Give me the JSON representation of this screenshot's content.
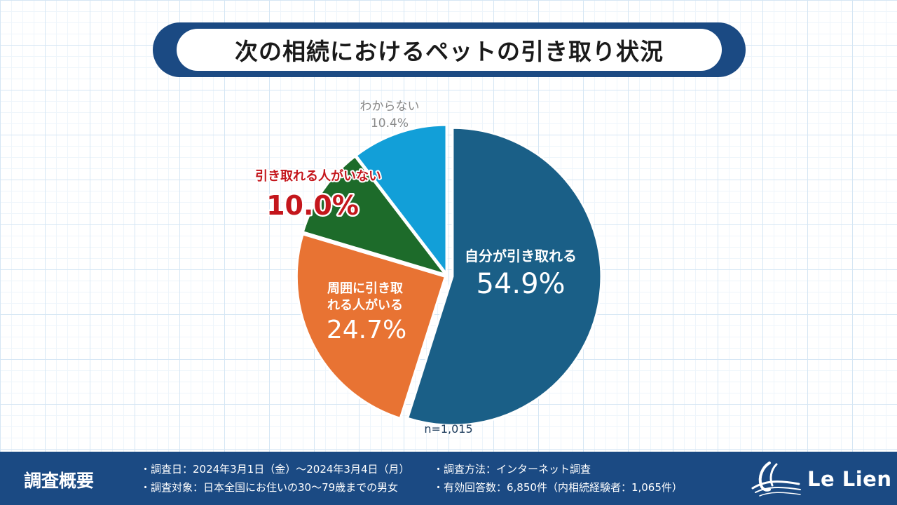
{
  "title": "次の相続におけるペットの引き取り状況",
  "chart_data": {
    "type": "pie",
    "title": "次の相続におけるペットの引き取り状況",
    "slices": [
      {
        "label": "自分が引き取れる",
        "value": 54.9,
        "display": "54.9%",
        "color": "#1a5f87"
      },
      {
        "label": "周囲に引き取れる人がいる",
        "value": 24.7,
        "display": "24.7%",
        "color": "#e87333"
      },
      {
        "label": "引き取れる人がいない",
        "value": 10.0,
        "display": "10.0%",
        "color": "#1d6b2a"
      },
      {
        "label": "わからない",
        "value": 10.4,
        "display": "10.4%",
        "color": "#129fd8"
      }
    ],
    "highlight_color": "#c4161c",
    "note": "n=1,015"
  },
  "labels": {
    "self": {
      "line1": "自分が引き取れる",
      "value": "54.9%"
    },
    "surrounding": {
      "line1": "周囲に引き取",
      "line2": "れる人がいる",
      "value": "24.7%"
    },
    "nobody": {
      "line1": "引き取れる人がいない",
      "value": "10.0%"
    },
    "unknown": {
      "line1": "わからない",
      "value": "10.4%"
    },
    "n": "n=1,015"
  },
  "footer": {
    "title": "調査概要",
    "items": [
      "・調査日：2024年3月1日（金）〜2024年3月4日（月）",
      "・調査対象：日本全国にお住いの30〜79歳までの男女",
      "・調査方法：インターネット調査",
      "・有効回答数：6,850件（内相続経験者：1,065件）"
    ],
    "logo_text": "Le Lien"
  }
}
